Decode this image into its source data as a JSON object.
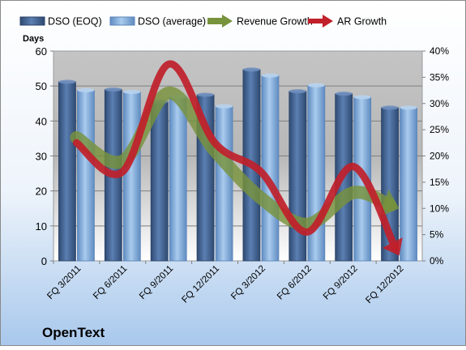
{
  "chart_data": {
    "type": "bar",
    "categories": [
      "FQ 3/2011",
      "FQ 6/2011",
      "FQ 9/2011",
      "FQ 12/2011",
      "FQ 3/2012",
      "FQ 6/2012",
      "FQ 9/2012",
      "FQ 12/2012"
    ],
    "series": [
      {
        "name": "DSO (EOQ)",
        "type": "bar",
        "axis": "left",
        "color": "#4f6f9f",
        "values": [
          51.2,
          49.0,
          45.5,
          47.5,
          54.7,
          48.5,
          47.8,
          43.8
        ]
      },
      {
        "name": "DSO (average)",
        "type": "bar",
        "axis": "left",
        "color": "#8db3e2",
        "values": [
          48.8,
          48.3,
          47.0,
          44.2,
          53.0,
          50.2,
          46.8,
          43.8
        ]
      },
      {
        "name": "Revenue Growth",
        "type": "line",
        "axis": "right",
        "color": "#77933c",
        "values": [
          23.5,
          19.0,
          32.0,
          21.0,
          12.0,
          7.0,
          13.0,
          10.0
        ],
        "unit": "%"
      },
      {
        "name": "AR Growth",
        "type": "line",
        "axis": "right",
        "color": "#c0202a",
        "values": [
          22.5,
          17.0,
          37.5,
          22.5,
          17.0,
          5.5,
          18.0,
          1.0
        ],
        "unit": "%"
      }
    ],
    "ylabel": "Days",
    "ylim": [
      0,
      60
    ],
    "yticks": [
      "0",
      "10",
      "20",
      "30",
      "40",
      "50",
      "60"
    ],
    "y2lim": [
      0,
      40
    ],
    "y2ticks": [
      "0%",
      "5%",
      "10%",
      "15%",
      "20%",
      "25%",
      "30%",
      "35%",
      "40%"
    ],
    "grid": true,
    "legend": "top",
    "company": "OpenText"
  }
}
